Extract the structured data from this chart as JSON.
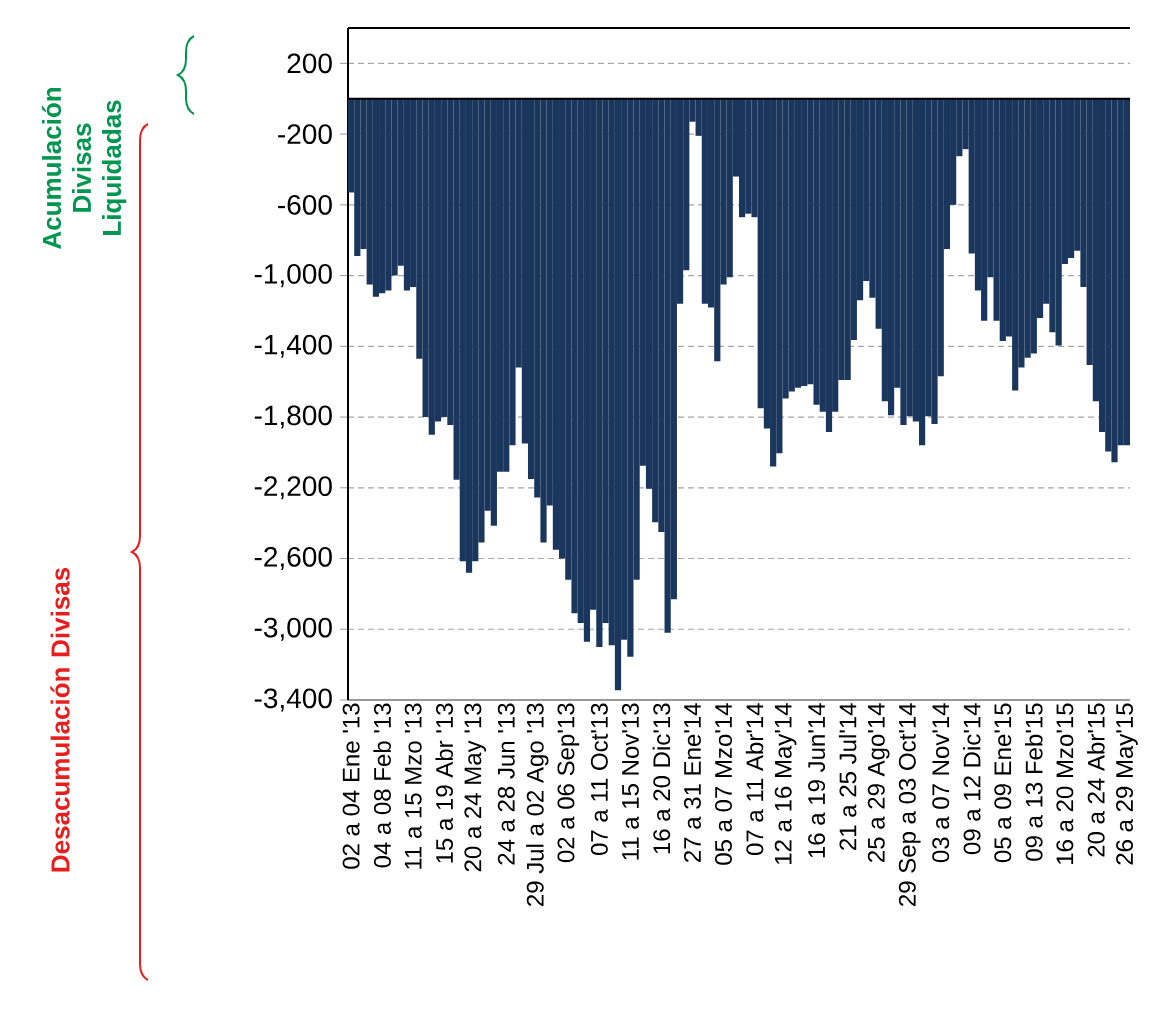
{
  "chart_data": {
    "type": "bar",
    "categories": [
      "02 a 04 Ene '13",
      null,
      null,
      null,
      null,
      "04 a 08 Feb '13",
      null,
      null,
      null,
      null,
      "11 a 15 Mzo '13",
      null,
      null,
      null,
      null,
      "15 a 19 Abr '13",
      null,
      null,
      null,
      null,
      "20 a 24 May '13",
      null,
      null,
      null,
      null,
      "24 a 28 Jun '13",
      null,
      null,
      null,
      null,
      "29 Jul a 02 Ago '13",
      null,
      null,
      null,
      null,
      "02 a 06 Sep'13",
      null,
      null,
      null,
      null,
      "07 a 11 Oct'13",
      null,
      null,
      null,
      null,
      "11 a 15 Nov'13",
      null,
      null,
      null,
      null,
      "16 a 20 Dic'13",
      null,
      null,
      null,
      null,
      "27 a 31 Ene'14",
      null,
      null,
      null,
      null,
      "05 a 07 Mzo'14",
      null,
      null,
      null,
      null,
      "07 a 11 Abr'14",
      null,
      null,
      null,
      null,
      "12 a 16 May'14",
      null,
      null,
      null,
      null,
      "16 a 19 Jun'14",
      null,
      null,
      null,
      null,
      "21 a 25 Jul'14",
      null,
      null,
      null,
      null,
      "25 a 29 Ago'14",
      null,
      null,
      null,
      null,
      "29 Sep a 03 Oct'14",
      null,
      null,
      null,
      null,
      "03 a 07 Nov'14",
      null,
      null,
      null,
      null,
      "09 a 12 Dic'14",
      null,
      null,
      null,
      null,
      "05 a 09 Ene'15",
      null,
      null,
      null,
      null,
      "09 a 13 Feb'15",
      null,
      null,
      null,
      null,
      "16 a 20 Mzo'15",
      null,
      null,
      null,
      null,
      "20 a 24 Abr'15",
      null,
      null,
      null,
      null,
      "26 a 29 May'15"
    ],
    "values": [
      -530,
      -890,
      -850,
      -1050,
      -1120,
      -1100,
      -1085,
      -1000,
      -945,
      -1085,
      -1065,
      -1470,
      -1800,
      -1900,
      -1825,
      -1800,
      -1845,
      -2155,
      -2615,
      -2680,
      -2615,
      -2510,
      -2330,
      -2415,
      -2110,
      -2110,
      -1960,
      -1520,
      -1950,
      -2150,
      -2255,
      -2510,
      -2300,
      -2550,
      -2600,
      -2720,
      -2910,
      -2965,
      -3070,
      -2890,
      -3100,
      -2965,
      -3090,
      -3345,
      -3060,
      -3155,
      -2720,
      -2075,
      -2205,
      -2395,
      -2450,
      -3020,
      -2830,
      -1160,
      -970,
      -130,
      -210,
      -1160,
      -1180,
      -1485,
      -1050,
      -1010,
      -440,
      -670,
      -650,
      -670,
      -1750,
      -1865,
      -2080,
      -2005,
      -1695,
      -1655,
      -1635,
      -1625,
      -1615,
      -1730,
      -1770,
      -1885,
      -1770,
      -1590,
      -1590,
      -1365,
      -1140,
      -1030,
      -1125,
      -1300,
      -1710,
      -1790,
      -1635,
      -1845,
      -1795,
      -1825,
      -1960,
      -1795,
      -1840,
      -1570,
      -850,
      -600,
      -325,
      -285,
      -875,
      -1085,
      -1255,
      -1010,
      -1255,
      -1370,
      -1345,
      -1650,
      -1520,
      -1465,
      -1440,
      -1240,
      -1160,
      -1320,
      -1395,
      -935,
      -900,
      -860,
      -1065,
      -1505,
      -1710,
      -1885,
      -1995,
      -2055,
      -1960,
      -1960
    ],
    "color": "#1b365d",
    "ylim": [
      -3400,
      400
    ],
    "yticks": [
      200,
      -200,
      -600,
      {
        "value": -1000,
        "label": "-1,000"
      },
      {
        "value": -1400,
        "label": "-1,400"
      },
      {
        "value": -1800,
        "label": "-1,800"
      },
      {
        "value": -2200,
        "label": "-2,200"
      },
      {
        "value": -2600,
        "label": "-2,600"
      },
      {
        "value": -3000,
        "label": "-3,000"
      },
      {
        "value": -3400,
        "label": "-3,400"
      }
    ],
    "grid": "y",
    "annotations": [
      "Acumulación Divisas Liquidadas",
      "Desacumulación Divisas"
    ]
  }
}
